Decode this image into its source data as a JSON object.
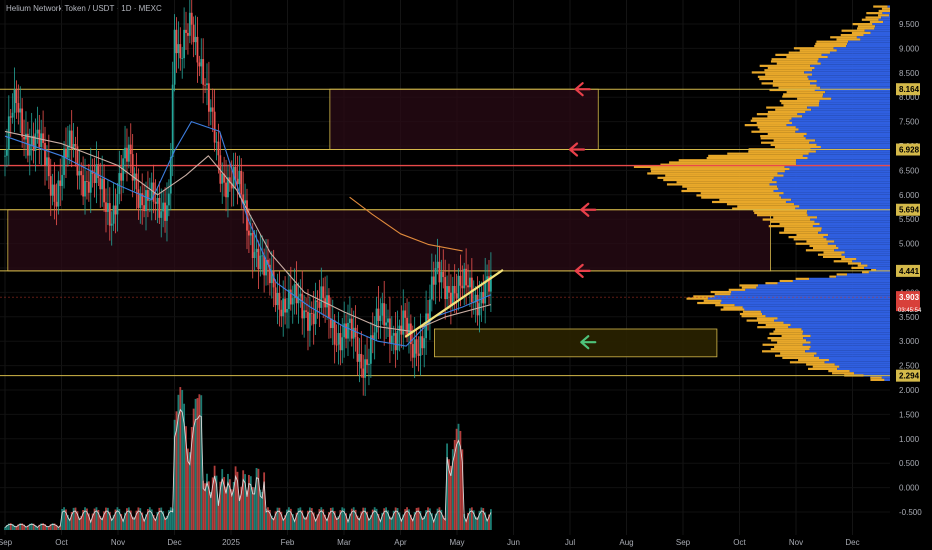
{
  "header": {
    "title": "Helium Network Token / USDT · 1D · MEXC"
  },
  "colors": {
    "background": "#000000",
    "candle_up": "#26a69a",
    "candle_down": "#ef5350",
    "level_line": "#d4b94a",
    "resistance_line": "#e84a4a",
    "zone_fill": "#2a0b16",
    "support_zone_fill": "#2a2200",
    "volume_profile_up": "#e8a82a",
    "volume_profile_down": "#2f5fe0",
    "trendline": "#f3e27a",
    "arrow_red": "#e8404a",
    "arrow_green": "#4ec27a"
  },
  "chart_data": {
    "type": "candlestick",
    "title": "Helium Network Token / USDT · 1D · MEXC",
    "ylim": [
      -0.8,
      9.9
    ],
    "y_ticks": [
      "9.500",
      "9.000",
      "8.500",
      "8.000",
      "7.500",
      "7.000",
      "6.500",
      "6.000",
      "5.500",
      "5.000",
      "4.500",
      "4.000",
      "3.500",
      "3.000",
      "2.500",
      "2.000",
      "1.500",
      "1.000",
      "0.500",
      "0.000",
      "-0.500"
    ],
    "y_tick_values": [
      9.5,
      9.0,
      8.5,
      8.0,
      7.5,
      7.0,
      6.5,
      6.0,
      5.5,
      5.0,
      4.5,
      4.0,
      3.5,
      3.0,
      2.5,
      2.0,
      1.5,
      1.0,
      0.5,
      0.0,
      -0.5
    ],
    "x_tick_labels": [
      "Sep",
      "Oct",
      "Nov",
      "Dec",
      "2025",
      "Feb",
      "Mar",
      "Apr",
      "May",
      "Jun",
      "Jul",
      "Aug",
      "Sep",
      "Oct",
      "Nov",
      "Dec"
    ],
    "price_labels": [
      {
        "text": "8.164",
        "value": 8.164,
        "style": "level"
      },
      {
        "text": "6.928",
        "value": 6.928,
        "style": "level"
      },
      {
        "text": "5.694",
        "value": 5.694,
        "style": "level"
      },
      {
        "text": "4.441",
        "value": 4.441,
        "style": "level"
      },
      {
        "text": "3.903",
        "value": 3.903,
        "style": "current"
      },
      {
        "text": "03:45:54",
        "value": 3.72,
        "style": "countdown"
      },
      {
        "text": "2.294",
        "value": 2.294,
        "style": "level"
      }
    ],
    "horizontal_levels": [
      8.164,
      6.928,
      6.6,
      5.694,
      4.441,
      2.294
    ],
    "zones": [
      {
        "top": 8.164,
        "bottom": 6.928,
        "kind": "resistance",
        "from_month": 5.75,
        "to_month": 10.5
      },
      {
        "top": 5.694,
        "bottom": 4.441,
        "kind": "resistance",
        "from_month": 0.05,
        "to_month": 13.55
      },
      {
        "top": 3.25,
        "bottom": 2.68,
        "kind": "support",
        "from_month": 7.6,
        "to_month": 12.6
      }
    ],
    "arrows": [
      {
        "value": 8.164,
        "color": "red",
        "at_month": 10.1
      },
      {
        "value": 6.928,
        "color": "red",
        "at_month": 10.0
      },
      {
        "value": 5.694,
        "color": "red",
        "at_month": 10.2
      },
      {
        "value": 4.441,
        "color": "red",
        "at_month": 10.1
      },
      {
        "value": 2.98,
        "color": "green",
        "at_month": 10.2
      }
    ],
    "trendline": {
      "from": [
        7.1,
        3.1
      ],
      "to": [
        8.8,
        4.45
      ]
    },
    "anchors": [
      [
        0.0,
        6.8
      ],
      [
        0.2,
        7.8
      ],
      [
        0.5,
        7.1
      ],
      [
        0.9,
        6.2
      ],
      [
        1.2,
        6.9
      ],
      [
        1.6,
        6.1
      ],
      [
        1.9,
        5.8
      ],
      [
        2.2,
        6.7
      ],
      [
        2.5,
        5.9
      ],
      [
        2.7,
        5.5
      ],
      [
        2.9,
        6.2
      ],
      [
        3.0,
        9.3
      ],
      [
        3.1,
        8.4
      ],
      [
        3.3,
        9.8
      ],
      [
        3.45,
        8.9
      ],
      [
        3.6,
        7.6
      ],
      [
        3.8,
        6.7
      ],
      [
        4.0,
        6.3
      ],
      [
        4.2,
        5.8
      ],
      [
        4.4,
        5.2
      ],
      [
        4.6,
        4.2
      ],
      [
        4.9,
        4.0
      ],
      [
        5.1,
        3.6
      ],
      [
        5.4,
        3.8
      ],
      [
        5.7,
        3.5
      ],
      [
        6.0,
        3.2
      ],
      [
        6.3,
        2.6
      ],
      [
        6.5,
        3.1
      ],
      [
        6.8,
        3.4
      ],
      [
        7.05,
        3.3
      ],
      [
        7.2,
        2.6
      ],
      [
        7.35,
        3.2
      ],
      [
        7.6,
        4.1
      ],
      [
        7.9,
        4.3
      ],
      [
        8.1,
        3.9
      ],
      [
        8.3,
        4.0
      ],
      [
        8.5,
        4.2
      ],
      [
        8.6,
        3.9
      ]
    ],
    "moving_averages": [
      {
        "color": "#3d7ee0",
        "points": [
          [
            0.0,
            7.2
          ],
          [
            1.0,
            6.8
          ],
          [
            2.0,
            6.2
          ],
          [
            2.6,
            5.9
          ],
          [
            3.0,
            6.9
          ],
          [
            3.3,
            7.5
          ],
          [
            3.8,
            7.3
          ],
          [
            4.3,
            5.5
          ],
          [
            4.8,
            4.2
          ],
          [
            5.4,
            3.7
          ],
          [
            6.0,
            3.3
          ],
          [
            6.6,
            3.0
          ],
          [
            7.1,
            2.9
          ],
          [
            7.6,
            3.5
          ],
          [
            8.1,
            3.7
          ],
          [
            8.6,
            3.95
          ]
        ]
      },
      {
        "color": "#c9aea4",
        "points": [
          [
            0.0,
            7.3
          ],
          [
            1.0,
            7.05
          ],
          [
            2.0,
            6.6
          ],
          [
            2.7,
            6.0
          ],
          [
            3.2,
            6.4
          ],
          [
            3.6,
            6.8
          ],
          [
            4.1,
            6.1
          ],
          [
            4.7,
            4.8
          ],
          [
            5.3,
            4.0
          ],
          [
            6.0,
            3.6
          ],
          [
            6.6,
            3.3
          ],
          [
            7.2,
            3.2
          ],
          [
            7.8,
            3.5
          ],
          [
            8.6,
            3.75
          ]
        ]
      },
      {
        "color": "#e08a3c",
        "points": [
          [
            6.1,
            5.95
          ],
          [
            6.5,
            5.6
          ],
          [
            7.0,
            5.2
          ],
          [
            7.5,
            4.98
          ],
          [
            8.1,
            4.85
          ]
        ]
      }
    ],
    "volume_profile": {
      "stops": [
        [
          9.9,
          0.05,
          0.0
        ],
        [
          9.3,
          0.22,
          0.12
        ],
        [
          8.9,
          0.42,
          0.25
        ],
        [
          8.5,
          0.48,
          0.3
        ],
        [
          8.0,
          0.35,
          0.22
        ],
        [
          7.5,
          0.55,
          0.4
        ],
        [
          7.0,
          0.5,
          0.3
        ],
        [
          6.6,
          0.98,
          0.4
        ],
        [
          6.3,
          0.85,
          0.45
        ],
        [
          6.0,
          0.7,
          0.4
        ],
        [
          5.6,
          0.45,
          0.28
        ],
        [
          5.2,
          0.38,
          0.25
        ],
        [
          4.8,
          0.3,
          0.2
        ],
        [
          4.45,
          0.12,
          0.08
        ],
        [
          4.2,
          0.55,
          0.48
        ],
        [
          3.9,
          0.78,
          0.7
        ],
        [
          3.6,
          0.55,
          0.48
        ],
        [
          3.2,
          0.4,
          0.3
        ],
        [
          2.8,
          0.45,
          0.3
        ],
        [
          2.4,
          0.28,
          0.18
        ],
        [
          2.2,
          0.05,
          0.0
        ]
      ]
    }
  }
}
